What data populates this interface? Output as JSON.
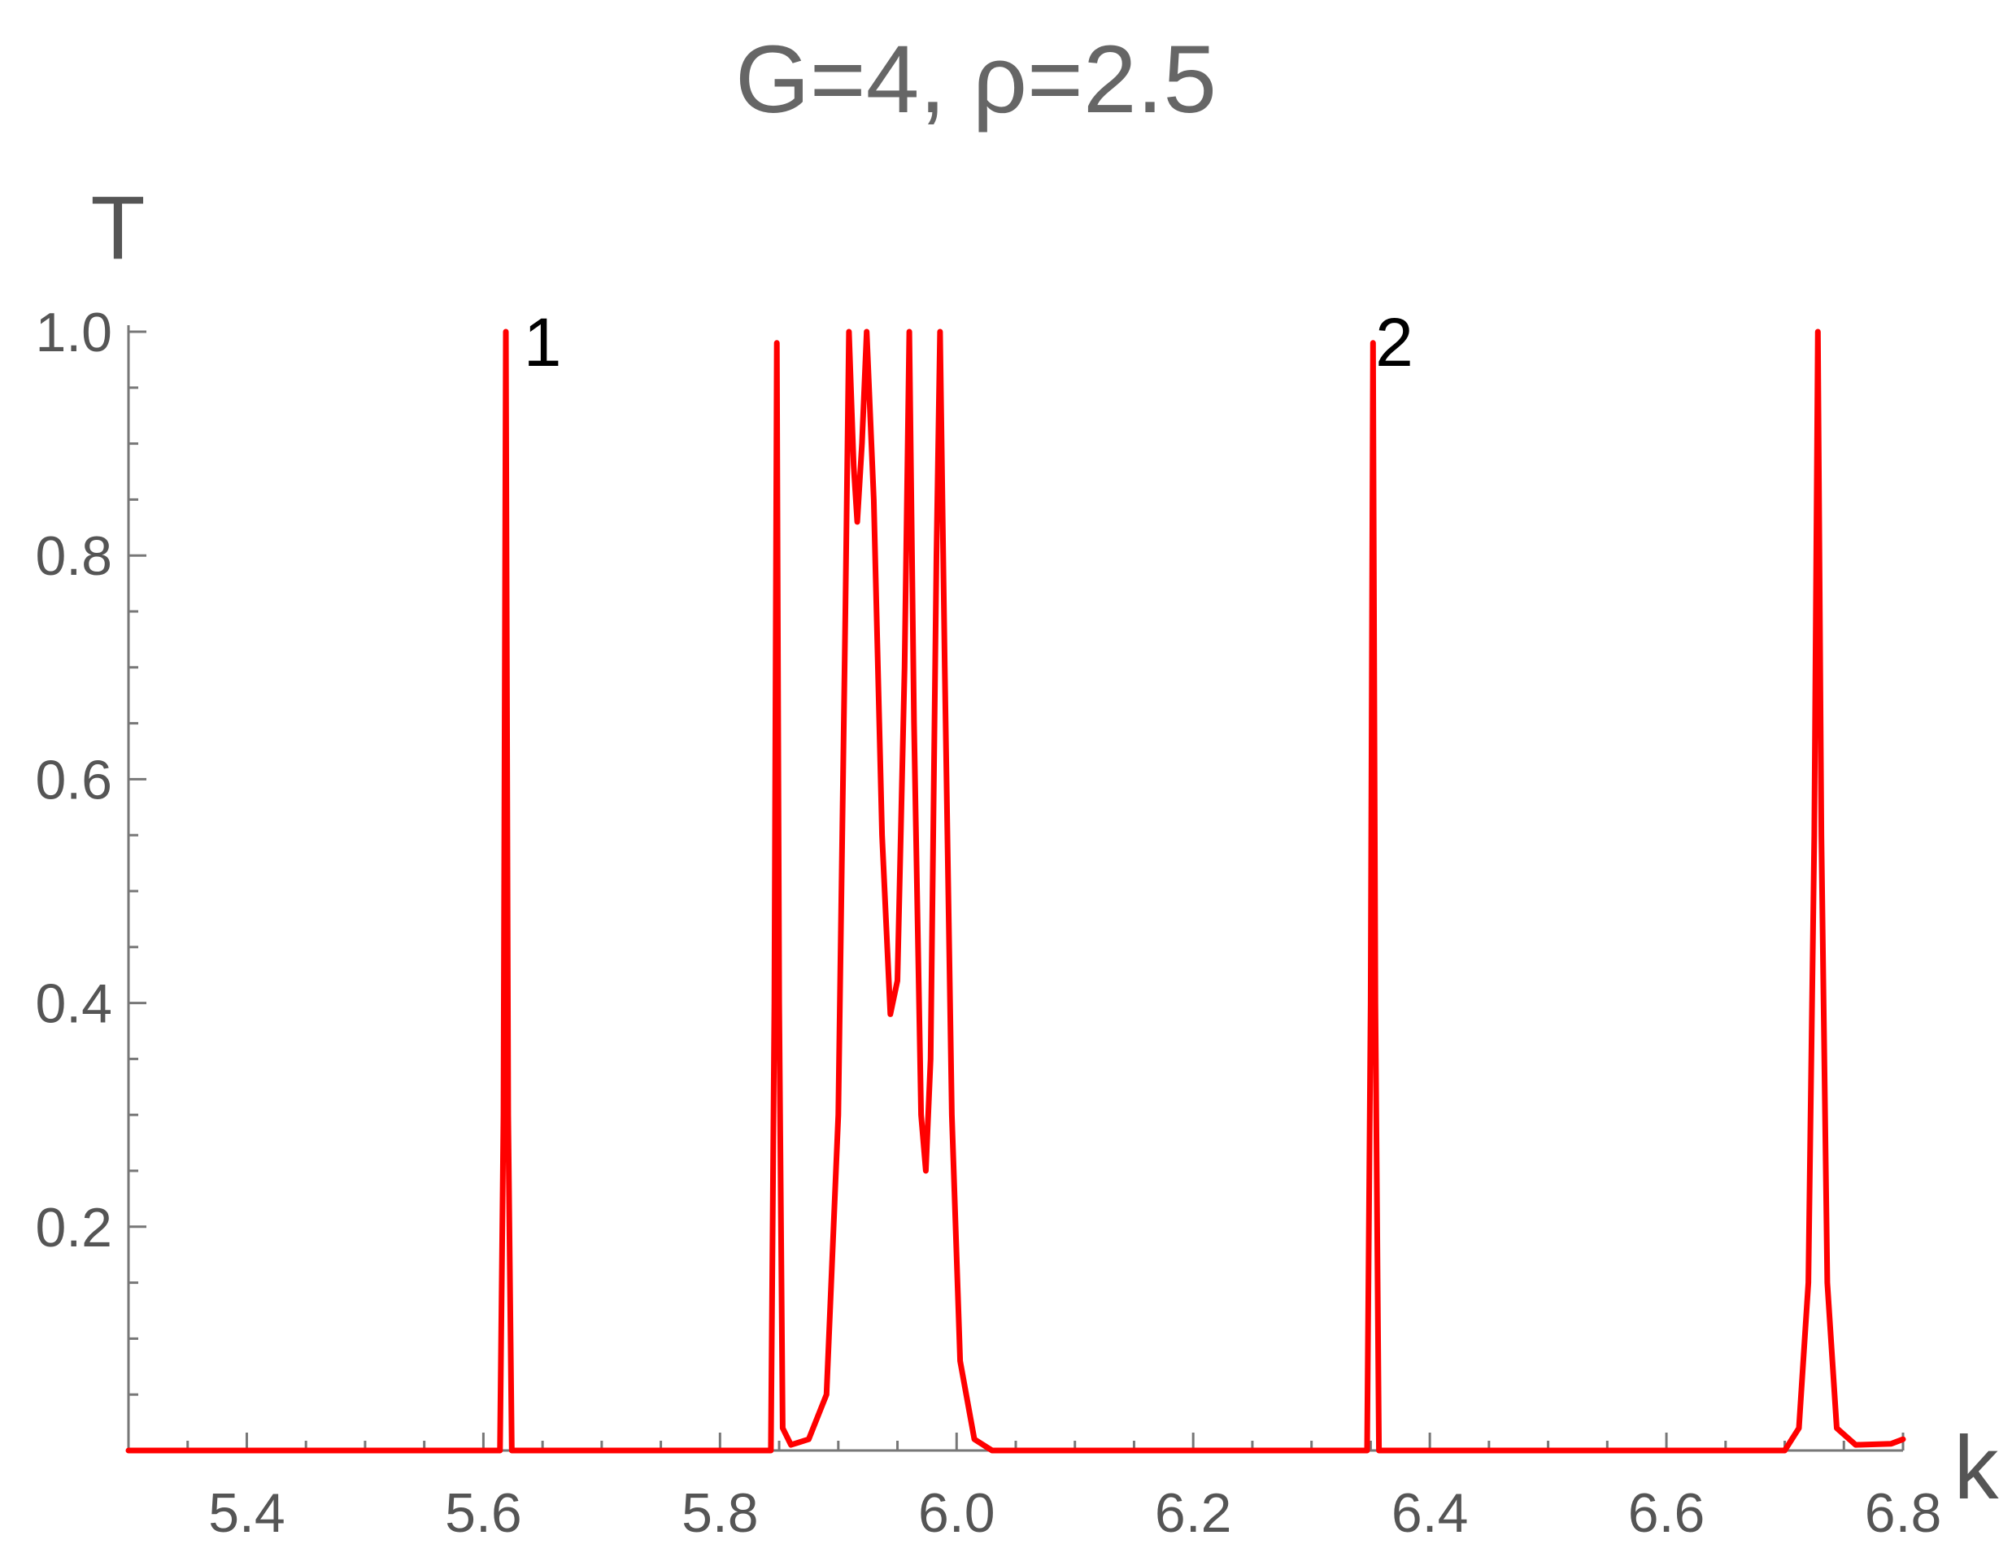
{
  "chart_data": {
    "type": "line",
    "title": "G=4, ρ=2.5",
    "xlabel": "k",
    "ylabel": "T",
    "xlim": [
      5.3,
      6.8
    ],
    "ylim": [
      0,
      1.0
    ],
    "x_ticks": [
      "5.4",
      "5.6",
      "5.8",
      "6.0",
      "6.2",
      "6.4",
      "6.6",
      "6.8"
    ],
    "y_ticks": [
      "0.2",
      "0.4",
      "0.6",
      "0.8",
      "1.0"
    ],
    "grid": false,
    "line_color": "#ff0000",
    "annotations": [
      {
        "text": "1",
        "x": 5.65,
        "y": 0.99
      },
      {
        "text": "2",
        "x": 6.37,
        "y": 0.99
      }
    ],
    "series": [
      {
        "points": [
          [
            5.3,
            0.0
          ],
          [
            5.614,
            0.0
          ],
          [
            5.617,
            0.3
          ],
          [
            5.619,
            1.0
          ],
          [
            5.621,
            0.3
          ],
          [
            5.624,
            0.0
          ],
          [
            5.843,
            0.0
          ],
          [
            5.846,
            0.4
          ],
          [
            5.848,
            0.99
          ],
          [
            5.85,
            0.4
          ],
          [
            5.853,
            0.02
          ],
          [
            5.86,
            0.005
          ],
          [
            5.875,
            0.01
          ],
          [
            5.89,
            0.05
          ],
          [
            5.9,
            0.3
          ],
          [
            5.906,
            0.75
          ],
          [
            5.909,
            1.0
          ],
          [
            5.913,
            0.88
          ],
          [
            5.916,
            0.83
          ],
          [
            5.92,
            0.9
          ],
          [
            5.924,
            1.0
          ],
          [
            5.93,
            0.85
          ],
          [
            5.937,
            0.55
          ],
          [
            5.944,
            0.39
          ],
          [
            5.95,
            0.42
          ],
          [
            5.956,
            0.7
          ],
          [
            5.96,
            1.0
          ],
          [
            5.964,
            0.65
          ],
          [
            5.97,
            0.3
          ],
          [
            5.974,
            0.25
          ],
          [
            5.978,
            0.35
          ],
          [
            5.983,
            0.8
          ],
          [
            5.986,
            1.0
          ],
          [
            5.99,
            0.7
          ],
          [
            5.996,
            0.3
          ],
          [
            6.003,
            0.08
          ],
          [
            6.015,
            0.01
          ],
          [
            6.03,
            0.0
          ],
          [
            6.347,
            0.0
          ],
          [
            6.35,
            0.4
          ],
          [
            6.352,
            0.99
          ],
          [
            6.354,
            0.4
          ],
          [
            6.357,
            0.0
          ],
          [
            6.7,
            0.0
          ],
          [
            6.712,
            0.02
          ],
          [
            6.72,
            0.15
          ],
          [
            6.725,
            0.55
          ],
          [
            6.728,
            1.0
          ],
          [
            6.731,
            0.55
          ],
          [
            6.736,
            0.15
          ],
          [
            6.744,
            0.02
          ],
          [
            6.76,
            0.005
          ],
          [
            6.79,
            0.006
          ],
          [
            6.8,
            0.01
          ]
        ]
      }
    ]
  }
}
